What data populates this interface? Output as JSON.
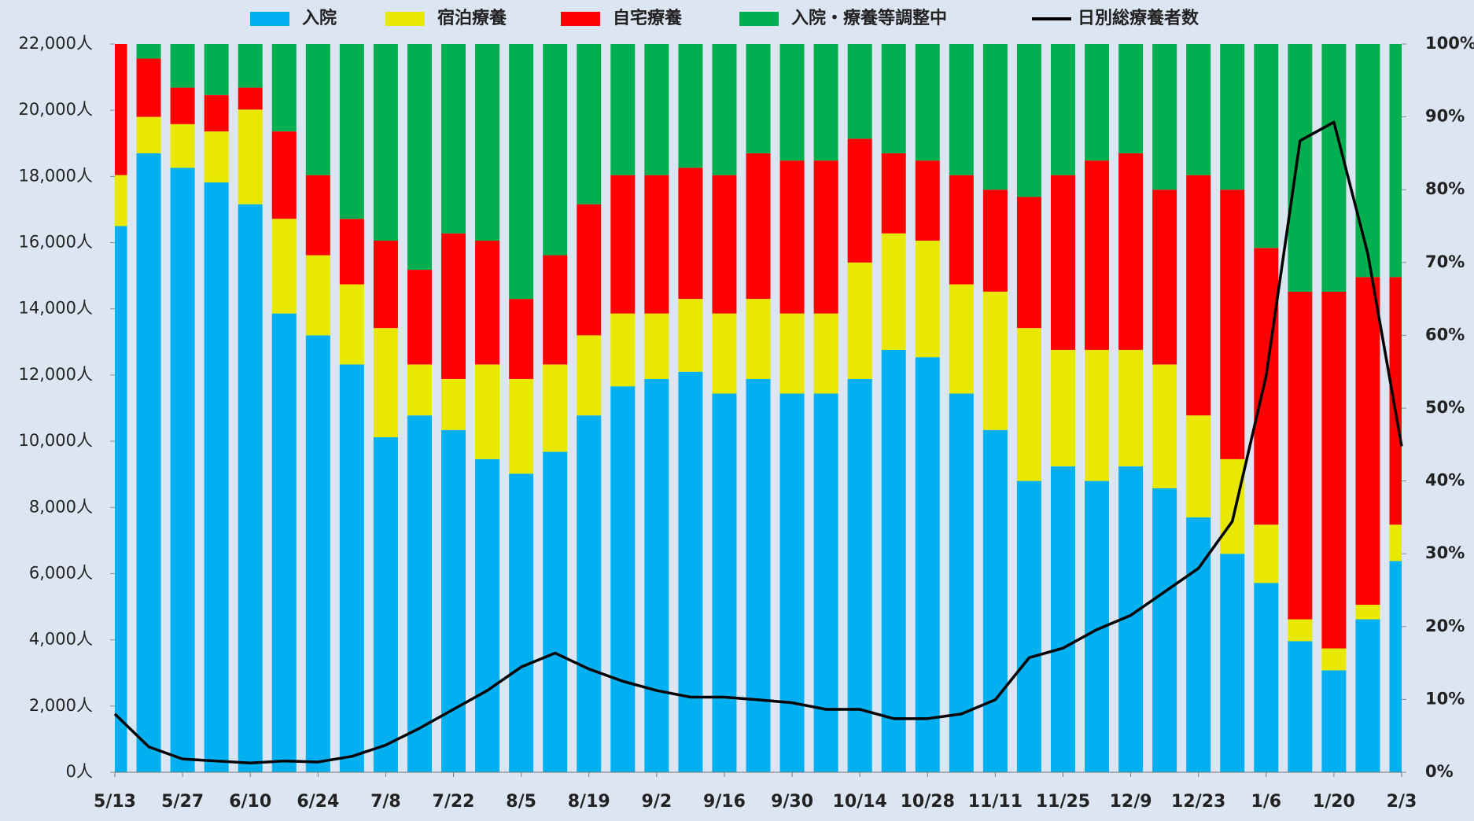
{
  "chart_data": {
    "type": "bar",
    "stacked": true,
    "categories": [
      "5/13",
      null,
      "5/27",
      null,
      "6/10",
      null,
      "6/24",
      null,
      "7/8",
      null,
      "7/22",
      null,
      "8/5",
      null,
      "8/19",
      null,
      "9/2",
      null,
      "9/16",
      null,
      "9/30",
      null,
      "10/14",
      null,
      "10/28",
      null,
      "11/11",
      null,
      "11/25",
      null,
      "12/9",
      null,
      "12/23",
      null,
      "1/6",
      null,
      "1/20",
      null,
      "2/3"
    ],
    "series": [
      {
        "name": "入院",
        "type": "bar",
        "axis": "y2",
        "color": "#00b0f0",
        "values": [
          75,
          85,
          83,
          81,
          78,
          63,
          60,
          56,
          46,
          49,
          47,
          43,
          41,
          44,
          49,
          53,
          54,
          55,
          52,
          54,
          52,
          52,
          54,
          58,
          57,
          52,
          47,
          40,
          42,
          40,
          42,
          39,
          35,
          30,
          26,
          18,
          14,
          21,
          29
        ]
      },
      {
        "name": "宿泊療養",
        "type": "bar",
        "axis": "y2",
        "color": "#e8e800",
        "values": [
          7,
          5,
          6,
          7,
          13,
          13,
          11,
          11,
          15,
          7,
          7,
          13,
          13,
          12,
          11,
          10,
          9,
          10,
          11,
          11,
          11,
          11,
          16,
          16,
          16,
          15,
          19,
          21,
          16,
          18,
          16,
          17,
          14,
          13,
          8,
          3,
          3,
          2,
          5
        ]
      },
      {
        "name": "自宅療養",
        "type": "bar",
        "axis": "y2",
        "color": "#ff0000",
        "values": [
          18,
          8,
          5,
          5,
          3,
          12,
          11,
          9,
          12,
          13,
          20,
          17,
          11,
          15,
          18,
          19,
          19,
          18,
          19,
          20,
          21,
          21,
          17,
          11,
          11,
          15,
          14,
          18,
          24,
          26,
          27,
          24,
          33,
          37,
          38,
          45,
          49,
          45,
          34
        ]
      },
      {
        "name": "入院・療養等調整中",
        "type": "bar",
        "axis": "y2",
        "color": "#00b050",
        "values": [
          0,
          2,
          6,
          7,
          6,
          12,
          18,
          24,
          27,
          31,
          26,
          27,
          35,
          29,
          22,
          18,
          18,
          17,
          18,
          15,
          16,
          16,
          13,
          15,
          16,
          18,
          20,
          21,
          18,
          16,
          15,
          20,
          18,
          20,
          28,
          34,
          34,
          32,
          32
        ]
      },
      {
        "name": "日別総療養者数",
        "type": "line",
        "axis": "y",
        "color": "#000000",
        "values": [
          1760,
          770,
          400,
          340,
          280,
          340,
          310,
          480,
          820,
          1330,
          1900,
          2470,
          3180,
          3600,
          3120,
          2750,
          2470,
          2270,
          2270,
          2190,
          2100,
          1900,
          1900,
          1620,
          1620,
          1760,
          2190,
          3460,
          3750,
          4310,
          4740,
          5450,
          6160,
          7580,
          11980,
          19080,
          19640,
          15670,
          9850
        ]
      }
    ],
    "ylim": [
      0,
      22000
    ],
    "yticks": [
      {
        "value": 0,
        "label": "0人"
      },
      {
        "value": 2000,
        "label": "2,000人"
      },
      {
        "value": 4000,
        "label": "4,000人"
      },
      {
        "value": 6000,
        "label": "6,000人"
      },
      {
        "value": 8000,
        "label": "8,000人"
      },
      {
        "value": 10000,
        "label": "10,000人"
      },
      {
        "value": 12000,
        "label": "12,000人"
      },
      {
        "value": 14000,
        "label": "14,000人"
      },
      {
        "value": 16000,
        "label": "16,000人"
      },
      {
        "value": 18000,
        "label": "18,000人"
      },
      {
        "value": 20000,
        "label": "20,000人"
      },
      {
        "value": 22000,
        "label": "22,000人"
      }
    ],
    "y2lim": [
      0,
      100
    ],
    "y2ticks": [
      {
        "value": 0,
        "label": "0%"
      },
      {
        "value": 10,
        "label": "10%"
      },
      {
        "value": 20,
        "label": "20%"
      },
      {
        "value": 30,
        "label": "30%"
      },
      {
        "value": 40,
        "label": "40%"
      },
      {
        "value": 50,
        "label": "50%"
      },
      {
        "value": 60,
        "label": "60%"
      },
      {
        "value": 70,
        "label": "70%"
      },
      {
        "value": 80,
        "label": "80%"
      },
      {
        "value": 90,
        "label": "90%"
      },
      {
        "value": 100,
        "label": "100%"
      }
    ],
    "legend": "top"
  }
}
